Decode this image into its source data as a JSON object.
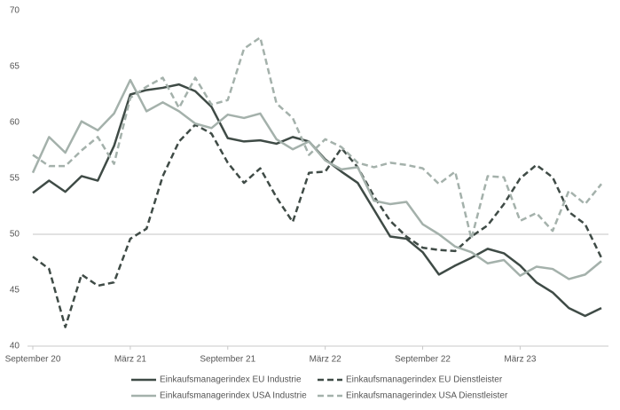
{
  "chart_data": {
    "type": "line",
    "categories": [
      "September 20",
      null,
      null,
      null,
      null,
      null,
      "März 21",
      null,
      null,
      null,
      null,
      null,
      "September 21",
      null,
      null,
      null,
      null,
      null,
      "März 22",
      null,
      null,
      null,
      null,
      null,
      "September 22",
      null,
      null,
      null,
      null,
      null,
      "März 23",
      null,
      null,
      null,
      null,
      null
    ],
    "ylim": [
      40,
      70
    ],
    "yticks": [
      40,
      45,
      50,
      55,
      60,
      65,
      70
    ],
    "reference_line": 50,
    "grid": false,
    "legend": "bottom",
    "series": [
      {
        "name": "Einkaufsmanagerindex EU Industrie",
        "color": "#3f4b46",
        "dashed": false,
        "values": [
          53.7,
          54.8,
          53.8,
          55.2,
          54.8,
          57.9,
          62.5,
          62.9,
          63.1,
          63.4,
          62.8,
          61.4,
          58.6,
          58.3,
          58.4,
          58.1,
          58.7,
          58.3,
          56.7,
          55.6,
          54.6,
          52.2,
          49.8,
          49.6,
          48.4,
          46.4,
          47.2,
          47.9,
          48.7,
          48.3,
          47.2,
          45.7,
          44.8,
          43.4,
          42.7,
          43.4
        ]
      },
      {
        "name": "Einkaufsmanagerindex EU Dienstleister",
        "color": "#3f4b46",
        "dashed": true,
        "values": [
          48.0,
          46.9,
          41.7,
          46.4,
          45.4,
          45.7,
          49.6,
          50.5,
          55.2,
          58.3,
          59.8,
          59.0,
          56.4,
          54.6,
          55.9,
          53.3,
          51.1,
          55.5,
          55.6,
          57.7,
          56.0,
          53.4,
          51.2,
          49.8,
          48.8,
          48.6,
          48.5,
          49.8,
          50.8,
          52.7,
          55.0,
          56.2,
          55.1,
          52.0,
          50.9,
          47.9
        ]
      },
      {
        "name": "Einkaufsmanagerindex USA Industrie",
        "color": "#a4b1ab",
        "dashed": false,
        "values": [
          55.5,
          58.7,
          57.3,
          60.1,
          59.3,
          60.8,
          63.8,
          61.0,
          61.8,
          61.0,
          59.9,
          59.5,
          60.7,
          60.4,
          60.8,
          58.5,
          57.6,
          58.3,
          56.6,
          55.8,
          56.0,
          53.0,
          52.7,
          52.9,
          50.9,
          50.0,
          48.9,
          48.4,
          47.4,
          47.7,
          46.3,
          47.1,
          46.9,
          46.0,
          46.4,
          47.6
        ]
      },
      {
        "name": "Einkaufsmanagerindex USA Dienstleister",
        "color": "#a4b1ab",
        "dashed": true,
        "values": [
          57.1,
          56.1,
          56.1,
          57.5,
          58.7,
          56.3,
          62.2,
          63.2,
          64.0,
          61.3,
          64.0,
          61.6,
          62.0,
          66.6,
          67.6,
          61.7,
          60.4,
          57.1,
          58.5,
          57.8,
          56.4,
          56.0,
          56.4,
          56.2,
          55.9,
          54.5,
          55.6,
          49.6,
          55.2,
          55.1,
          51.2,
          51.9,
          50.3,
          53.9,
          52.7,
          54.5
        ]
      }
    ]
  }
}
